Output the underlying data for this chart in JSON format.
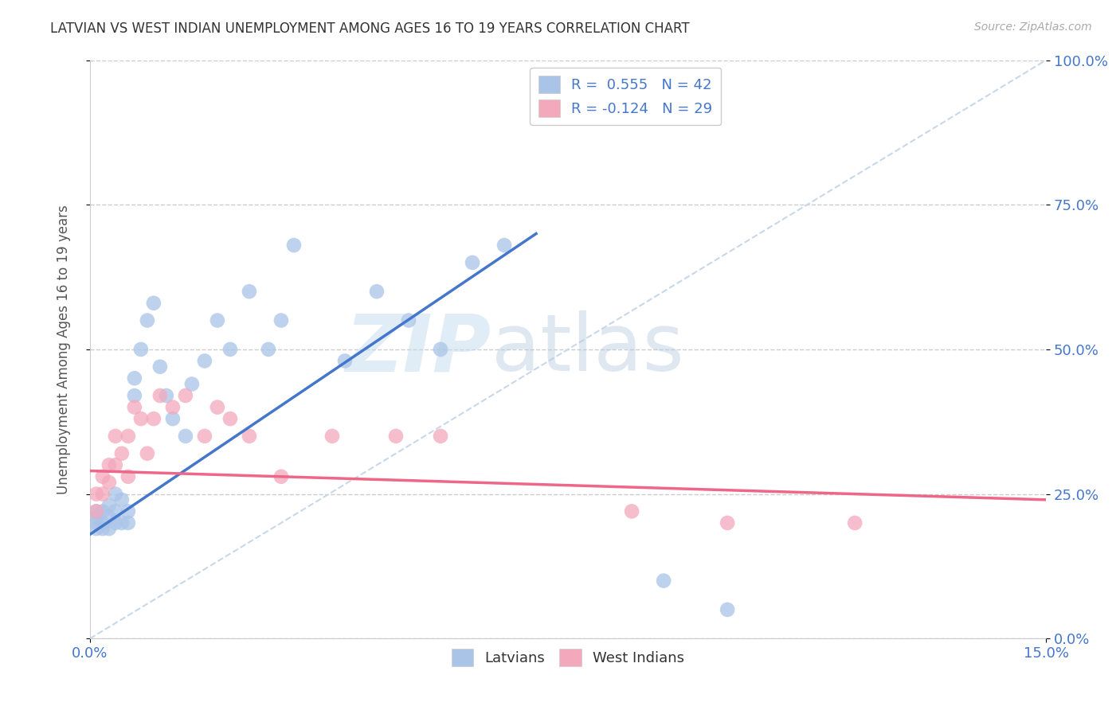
{
  "title": "LATVIAN VS WEST INDIAN UNEMPLOYMENT AMONG AGES 16 TO 19 YEARS CORRELATION CHART",
  "source": "Source: ZipAtlas.com",
  "ylabel": "Unemployment Among Ages 16 to 19 years",
  "xlim": [
    0.0,
    0.15
  ],
  "ylim": [
    0.0,
    1.0
  ],
  "ytick_labels": [
    "0.0%",
    "25.0%",
    "50.0%",
    "75.0%",
    "100.0%"
  ],
  "ytick_values": [
    0.0,
    0.25,
    0.5,
    0.75,
    1.0
  ],
  "xtick_labels": [
    "0.0%",
    "15.0%"
  ],
  "xtick_values": [
    0.0,
    0.15
  ],
  "bg_color": "#ffffff",
  "grid_color": "#cccccc",
  "latvian_color": "#aac4e8",
  "west_indian_color": "#f4a8bc",
  "latvian_line_color": "#4477cc",
  "west_indian_line_color": "#ee6688",
  "diagonal_color": "#c8d8e8",
  "R_latvian": 0.555,
  "N_latvian": 42,
  "R_west_indian": -0.124,
  "N_west_indian": 29,
  "legend_label_latvians": "Latvians",
  "legend_label_west_indians": "West Indians",
  "watermark_zip": "ZIP",
  "watermark_atlas": "atlas",
  "latvian_x": [
    0.001,
    0.001,
    0.001,
    0.001,
    0.002,
    0.002,
    0.002,
    0.003,
    0.003,
    0.003,
    0.004,
    0.004,
    0.004,
    0.005,
    0.005,
    0.006,
    0.006,
    0.007,
    0.007,
    0.008,
    0.009,
    0.01,
    0.011,
    0.012,
    0.013,
    0.015,
    0.016,
    0.018,
    0.02,
    0.022,
    0.025,
    0.028,
    0.03,
    0.032,
    0.04,
    0.045,
    0.05,
    0.055,
    0.06,
    0.065,
    0.09,
    0.1
  ],
  "latvian_y": [
    0.19,
    0.2,
    0.21,
    0.22,
    0.19,
    0.2,
    0.22,
    0.19,
    0.21,
    0.23,
    0.2,
    0.22,
    0.25,
    0.2,
    0.24,
    0.2,
    0.22,
    0.42,
    0.45,
    0.5,
    0.55,
    0.58,
    0.47,
    0.42,
    0.38,
    0.35,
    0.44,
    0.48,
    0.55,
    0.5,
    0.6,
    0.5,
    0.55,
    0.68,
    0.48,
    0.6,
    0.55,
    0.5,
    0.65,
    0.68,
    0.1,
    0.05
  ],
  "west_indian_x": [
    0.001,
    0.001,
    0.002,
    0.002,
    0.003,
    0.003,
    0.004,
    0.004,
    0.005,
    0.006,
    0.006,
    0.007,
    0.008,
    0.009,
    0.01,
    0.011,
    0.013,
    0.015,
    0.018,
    0.02,
    0.022,
    0.025,
    0.03,
    0.038,
    0.048,
    0.055,
    0.085,
    0.1,
    0.12
  ],
  "west_indian_y": [
    0.22,
    0.25,
    0.25,
    0.28,
    0.27,
    0.3,
    0.3,
    0.35,
    0.32,
    0.28,
    0.35,
    0.4,
    0.38,
    0.32,
    0.38,
    0.42,
    0.4,
    0.42,
    0.35,
    0.4,
    0.38,
    0.35,
    0.28,
    0.35,
    0.35,
    0.35,
    0.22,
    0.2,
    0.2
  ],
  "latvian_line_x0": 0.0,
  "latvian_line_y0": 0.18,
  "latvian_line_x1": 0.07,
  "latvian_line_y1": 0.7,
  "west_indian_line_x0": 0.0,
  "west_indian_line_y0": 0.29,
  "west_indian_line_x1": 0.15,
  "west_indian_line_y1": 0.24
}
